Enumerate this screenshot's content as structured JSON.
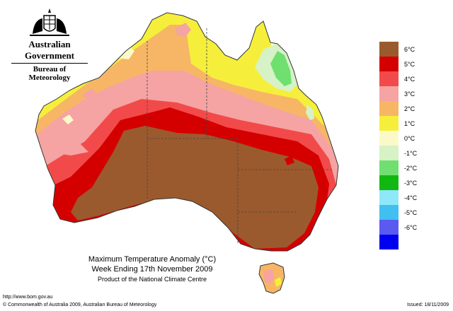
{
  "header": {
    "agency": "Australian Government",
    "bureau": "Bureau of Meteorology"
  },
  "title": {
    "line1": "Maximum Temperature Anomaly (°C)",
    "line2": "Week Ending 17th November 2009",
    "line3": "Product of the National Climate Centre"
  },
  "footer": {
    "website": "http://www.bom.gov.au",
    "copyright": "© Commonwealth of Australia 2009, Australian Bureau of Meteorology",
    "issued": "Issued: 18/11/2009"
  },
  "legend": [
    {
      "label": "6°C",
      "color": "#9b5a2e"
    },
    {
      "label": "5°C",
      "color": "#d40000"
    },
    {
      "label": "4°C",
      "color": "#f24a4a"
    },
    {
      "label": "3°C",
      "color": "#f5a3a3"
    },
    {
      "label": "2°C",
      "color": "#f7b665"
    },
    {
      "label": "1°C",
      "color": "#f5ef3c"
    },
    {
      "label": "0°C",
      "color": "#fafac8"
    },
    {
      "label": "-1°C",
      "color": "#d6f2c6"
    },
    {
      "label": "-2°C",
      "color": "#6fe06f"
    },
    {
      "label": "-3°C",
      "color": "#12b812"
    },
    {
      "label": "-4°C",
      "color": "#8fe8f8"
    },
    {
      "label": "-5°C",
      "color": "#40bff0"
    },
    {
      "label": "-6°C",
      "color": "#5a5af0"
    },
    {
      "label": "",
      "color": "#0000f0"
    }
  ]
}
